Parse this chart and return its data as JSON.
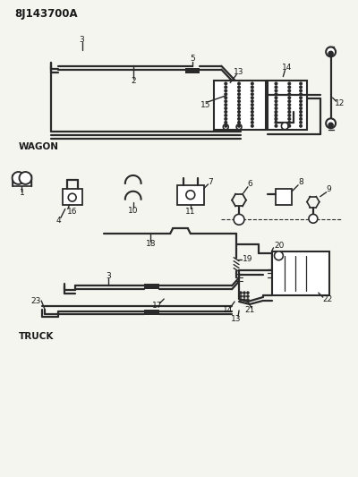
{
  "title": "8J143700A",
  "bg_color": "#f5f5f0",
  "line_color": "#2a2a2a",
  "text_color": "#1a1a1a",
  "wagon_label": "WAGON",
  "truck_label": "TRUCK",
  "fig_width": 4.0,
  "fig_height": 5.33,
  "dpi": 100
}
